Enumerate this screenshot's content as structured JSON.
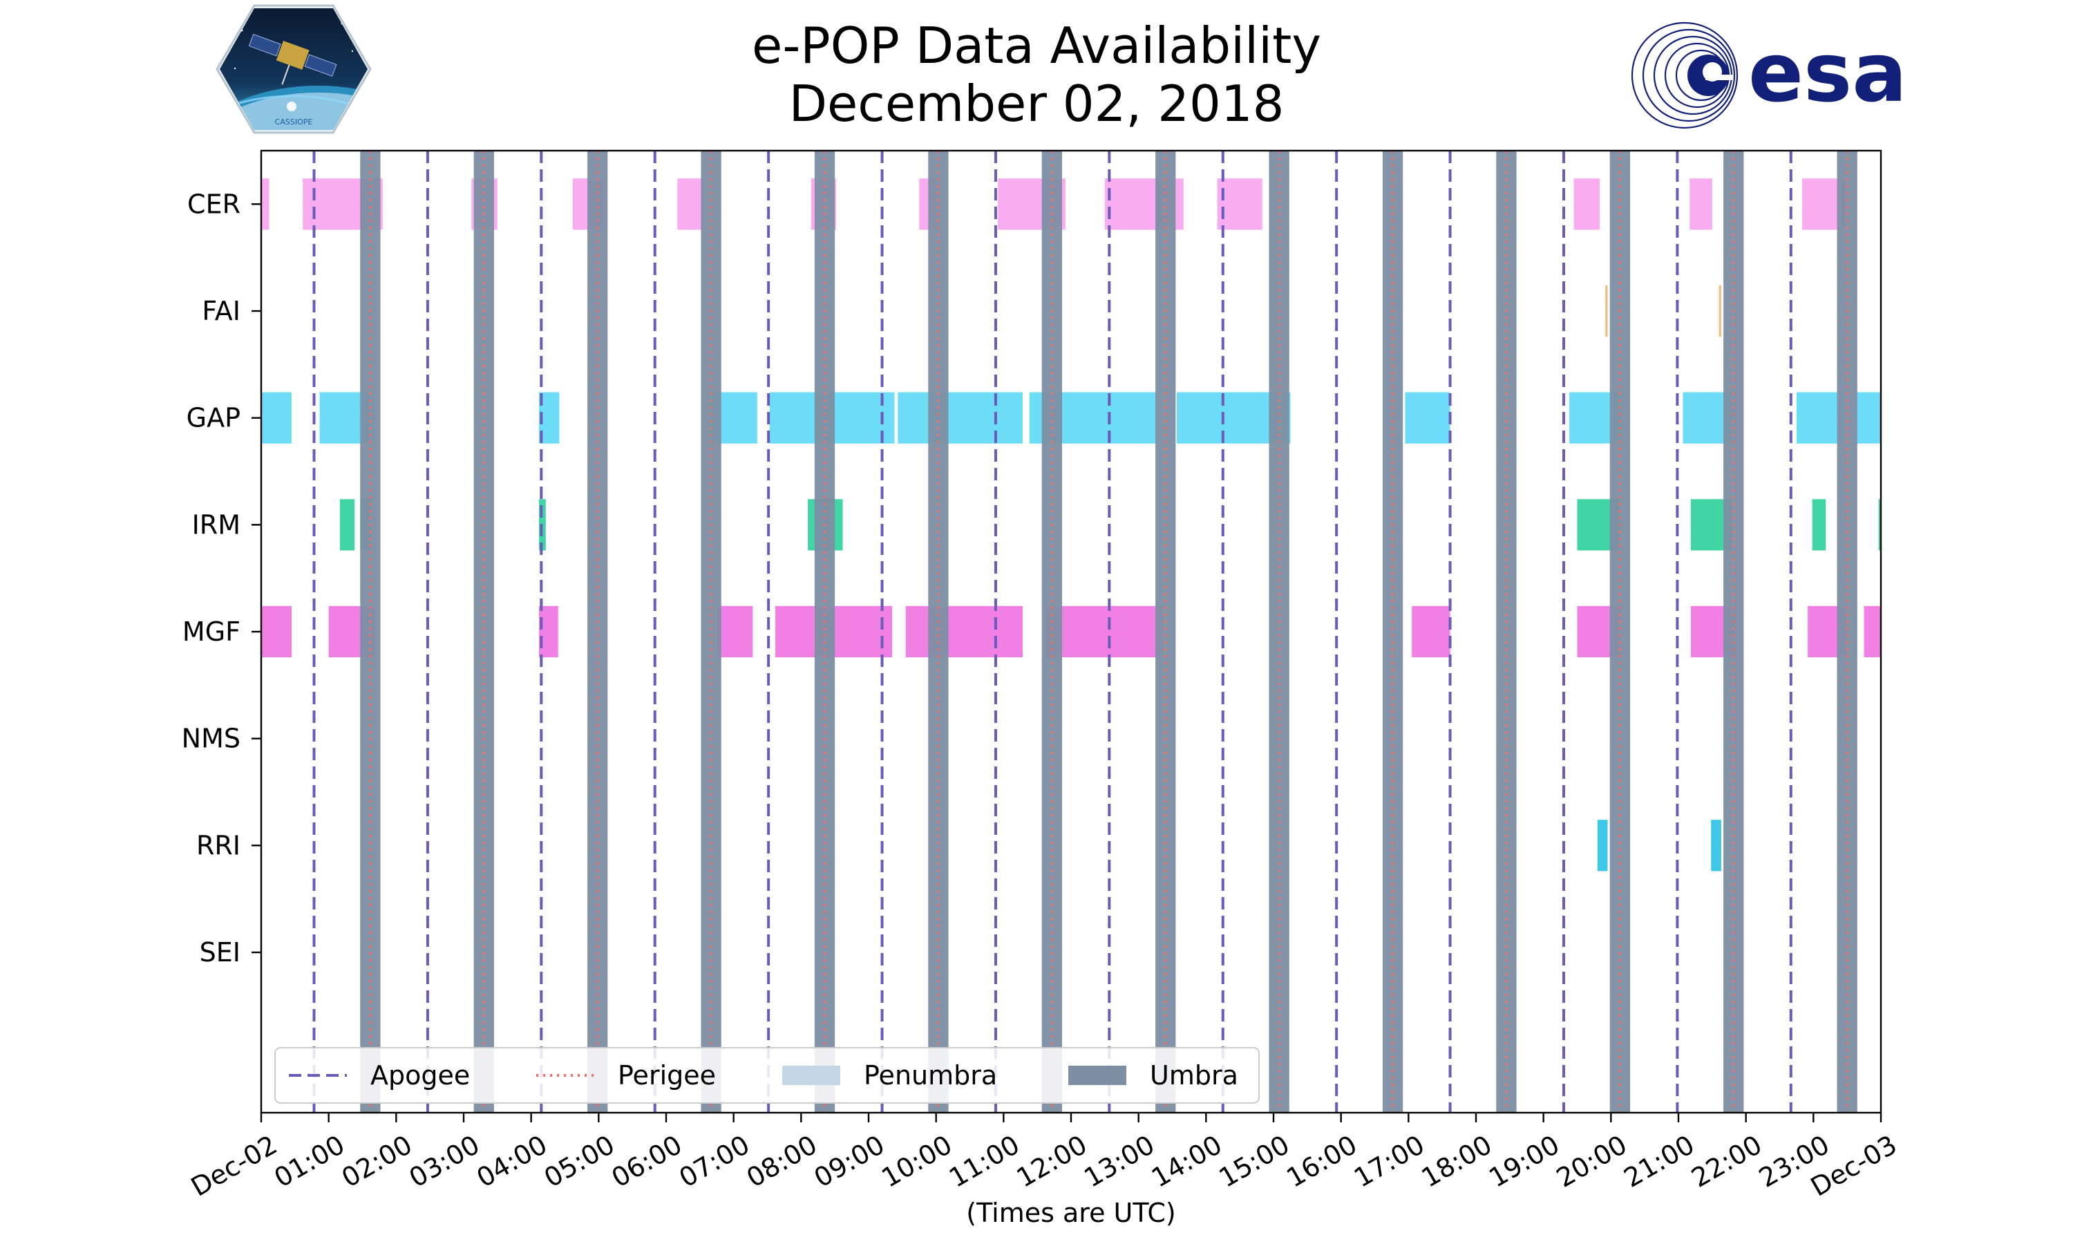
{
  "header": {
    "title_line1": "e-POP Data Availability",
    "title_line2": "December 02, 2018",
    "logo_left_text": "CASSIOPE",
    "logo_right_text": "esa"
  },
  "chart_data": {
    "type": "timeline",
    "title": "e-POP Data Availability December 02, 2018",
    "xlabel": "(Times are UTC)",
    "ylabel": "",
    "xlim": [
      "2018-12-02 00:00",
      "2018-12-03 00:00"
    ],
    "xticks": [
      "Dec-02",
      "01:00",
      "02:00",
      "03:00",
      "04:00",
      "05:00",
      "06:00",
      "07:00",
      "08:00",
      "09:00",
      "10:00",
      "11:00",
      "12:00",
      "13:00",
      "14:00",
      "15:00",
      "16:00",
      "17:00",
      "18:00",
      "19:00",
      "20:00",
      "21:00",
      "22:00",
      "23:00",
      "Dec-03"
    ],
    "instruments": [
      "CER",
      "FAI",
      "GAP",
      "IRM",
      "MGF",
      "NMS",
      "RRI",
      "SEI"
    ],
    "colors": {
      "CER": "#f9a3f0",
      "FAI": "#f5b56a",
      "GAP": "#5dd8f5",
      "IRM": "#2ccf9a",
      "MGF": "#ee72e0",
      "RRI": "#29c2e3",
      "apogee": "#6a5bb8",
      "perigee": "#f07068",
      "penumbra": "#c5d5e8",
      "umbra": "#7d8ea3"
    },
    "apogee_times": [
      "00:47",
      "02:28",
      "04:09",
      "05:50",
      "07:31",
      "09:12",
      "10:53",
      "12:34",
      "14:15",
      "15:56",
      "17:37",
      "19:18",
      "20:59",
      "22:40"
    ],
    "perigee_times": [
      "01:37",
      "03:18",
      "04:59",
      "06:40",
      "08:21",
      "10:02",
      "11:43",
      "13:24",
      "15:05",
      "16:46",
      "18:27",
      "20:08",
      "21:49",
      "23:30"
    ],
    "umbra_periods": [
      [
        "01:28",
        "01:46"
      ],
      [
        "03:09",
        "03:27"
      ],
      [
        "04:50",
        "05:08"
      ],
      [
        "06:31",
        "06:49"
      ],
      [
        "08:12",
        "08:30"
      ],
      [
        "09:53",
        "10:11"
      ],
      [
        "11:34",
        "11:52"
      ],
      [
        "13:15",
        "13:33"
      ],
      [
        "14:56",
        "15:14"
      ],
      [
        "16:37",
        "16:55"
      ],
      [
        "18:18",
        "18:36"
      ],
      [
        "19:59",
        "20:17"
      ],
      [
        "21:40",
        "21:58"
      ],
      [
        "23:21",
        "23:39"
      ]
    ],
    "availability": {
      "CER": [
        [
          "00:00",
          "00:07"
        ],
        [
          "00:37",
          "01:48"
        ],
        [
          "03:07",
          "03:30"
        ],
        [
          "04:37",
          "05:06"
        ],
        [
          "06:10",
          "06:33"
        ],
        [
          "08:09",
          "08:31"
        ],
        [
          "09:45",
          "10:03"
        ],
        [
          "10:55",
          "11:55"
        ],
        [
          "12:30",
          "13:40"
        ],
        [
          "14:10",
          "14:50"
        ],
        [
          "19:27",
          "19:50"
        ],
        [
          "21:10",
          "21:30"
        ],
        [
          "22:50",
          "23:28"
        ]
      ],
      "FAI": [
        [
          "01:36",
          "01:38"
        ],
        [
          "19:55",
          "19:57"
        ],
        [
          "21:36",
          "21:38"
        ]
      ],
      "GAP": [
        [
          "00:00",
          "00:27"
        ],
        [
          "00:52",
          "01:41"
        ],
        [
          "04:07",
          "04:25"
        ],
        [
          "06:40",
          "07:21"
        ],
        [
          "07:32",
          "09:23"
        ],
        [
          "09:26",
          "11:17"
        ],
        [
          "11:23",
          "13:16"
        ],
        [
          "13:34",
          "15:15"
        ],
        [
          "16:57",
          "17:37"
        ],
        [
          "19:23",
          "20:10"
        ],
        [
          "21:04",
          "21:51"
        ],
        [
          "22:45",
          "23:27"
        ],
        [
          "23:38",
          "24:00"
        ]
      ],
      "IRM": [
        [
          "01:10",
          "01:23"
        ],
        [
          "01:28",
          "01:38"
        ],
        [
          "04:07",
          "04:13"
        ],
        [
          "08:06",
          "08:37"
        ],
        [
          "19:30",
          "20:08"
        ],
        [
          "21:11",
          "21:48"
        ],
        [
          "22:59",
          "23:11"
        ],
        [
          "23:58",
          "24:00"
        ]
      ],
      "MGF": [
        [
          "00:00",
          "00:27"
        ],
        [
          "01:00",
          "01:41"
        ],
        [
          "04:07",
          "04:24"
        ],
        [
          "06:45",
          "07:17"
        ],
        [
          "07:37",
          "09:21"
        ],
        [
          "09:33",
          "11:17"
        ],
        [
          "11:38",
          "13:21"
        ],
        [
          "17:03",
          "17:37"
        ],
        [
          "19:30",
          "20:09"
        ],
        [
          "21:11",
          "21:51"
        ],
        [
          "22:55",
          "23:30"
        ],
        [
          "23:45",
          "24:00"
        ]
      ],
      "NMS": [],
      "RRI": [
        [
          "19:48",
          "19:57"
        ],
        [
          "21:29",
          "21:38"
        ]
      ],
      "SEI": []
    },
    "legend": {
      "placement": "lower-left",
      "items": [
        {
          "label": "Apogee",
          "style": "dashed",
          "color": "#6a5bb8"
        },
        {
          "label": "Perigee",
          "style": "dotted",
          "color": "#f07068"
        },
        {
          "label": "Penumbra",
          "style": "patch",
          "color": "#c5d5e8"
        },
        {
          "label": "Umbra",
          "style": "patch",
          "color": "#7d8ea3"
        }
      ]
    },
    "grid": false
  }
}
